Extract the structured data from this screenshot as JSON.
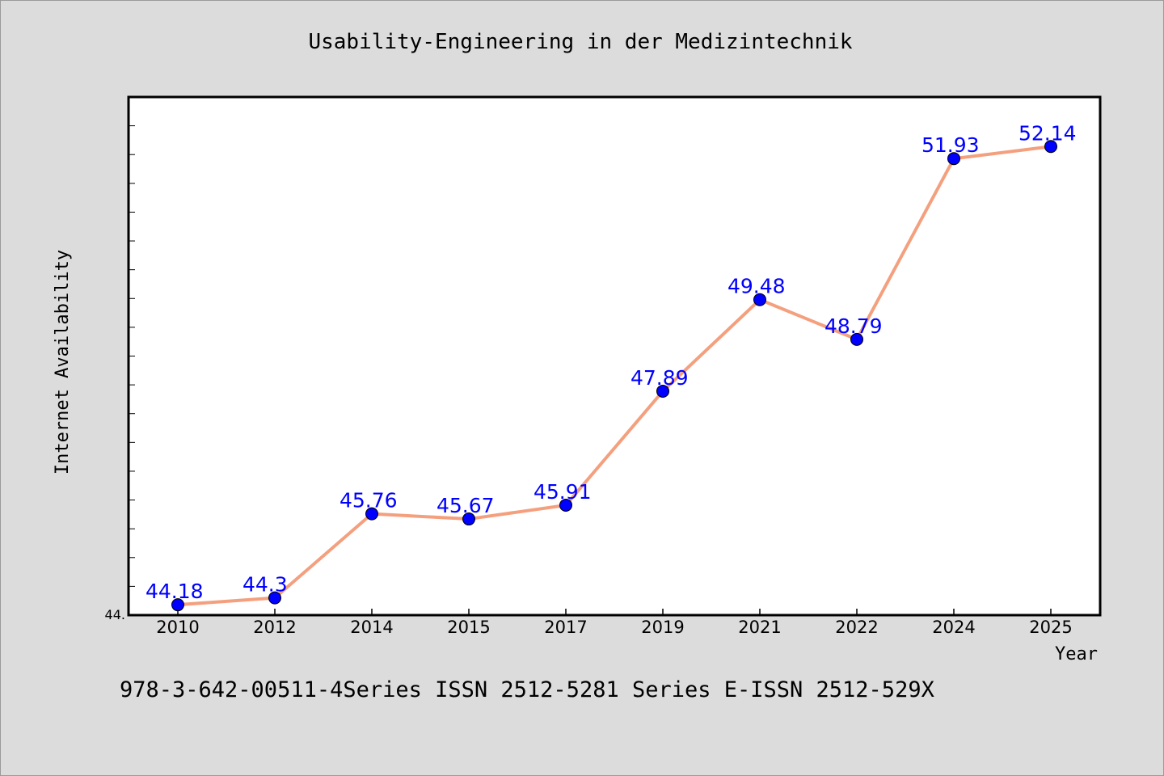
{
  "chart_data": {
    "type": "line",
    "title": "Usability-Engineering in der Medizintechnik",
    "xlabel": "Year",
    "ylabel": "Internet Availability",
    "categories": [
      "2010",
      "2012",
      "2014",
      "2015",
      "2017",
      "2019",
      "2021",
      "2022",
      "2024",
      "2025"
    ],
    "series": [
      {
        "values": [
          44.18,
          44.3,
          45.76,
          45.67,
          45.91,
          47.89,
          49.48,
          48.79,
          51.93,
          52.14
        ]
      }
    ],
    "data_labels": [
      "44.18",
      "44.3",
      "45.76",
      "45.67",
      "45.91",
      "47.89",
      "49.48",
      "48.79",
      "51.93",
      "52.14"
    ],
    "y_tick_label": "44.",
    "ylim": [
      44.0,
      53.0
    ],
    "grid": false,
    "legend": "none",
    "colors": {
      "line": "#f4a07e",
      "marker": "#0000ff",
      "data_label": "#0000ff",
      "plot_background": "#ffffff",
      "page_background": "#dcdcdc"
    }
  },
  "footer": {
    "text": "978-3-642-00511-4Series ISSN 2512-5281 Series E-ISSN 2512-529X"
  }
}
